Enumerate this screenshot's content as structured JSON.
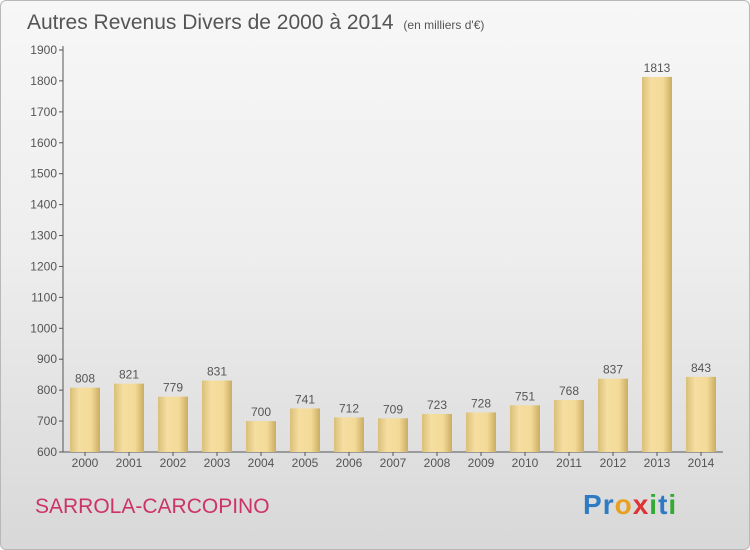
{
  "header": {
    "title": "Autres Revenus Divers de 2000 à 2014",
    "subtitle": "(en milliers d'€)"
  },
  "footer": {
    "place": "SARROLA-CARCOPINO",
    "brand_letters": [
      "P",
      "r",
      "o",
      "x",
      "i",
      "t",
      "i"
    ],
    "brand_colors": [
      "#2e7bc4",
      "#2e7bc4",
      "#e8a020",
      "#dd3333",
      "#33aa33",
      "#2e7bc4",
      "#33aa33"
    ]
  },
  "colors": {
    "bar_light": "#f5dea0",
    "bar_dark": "#cfb46a",
    "text": "#555555",
    "place": "#cc3366"
  },
  "chart_data": {
    "type": "bar",
    "categories": [
      "2000",
      "2001",
      "2002",
      "2003",
      "2004",
      "2005",
      "2006",
      "2007",
      "2008",
      "2009",
      "2010",
      "2011",
      "2012",
      "2013",
      "2014"
    ],
    "values": [
      808,
      821,
      779,
      831,
      700,
      741,
      712,
      709,
      723,
      728,
      751,
      768,
      837,
      1813,
      843
    ],
    "yticks": [
      600,
      700,
      800,
      900,
      1000,
      1100,
      1200,
      1300,
      1400,
      1500,
      1600,
      1700,
      1800,
      1900
    ],
    "ylim": [
      600,
      1900
    ],
    "grid": false,
    "legend": "none"
  }
}
